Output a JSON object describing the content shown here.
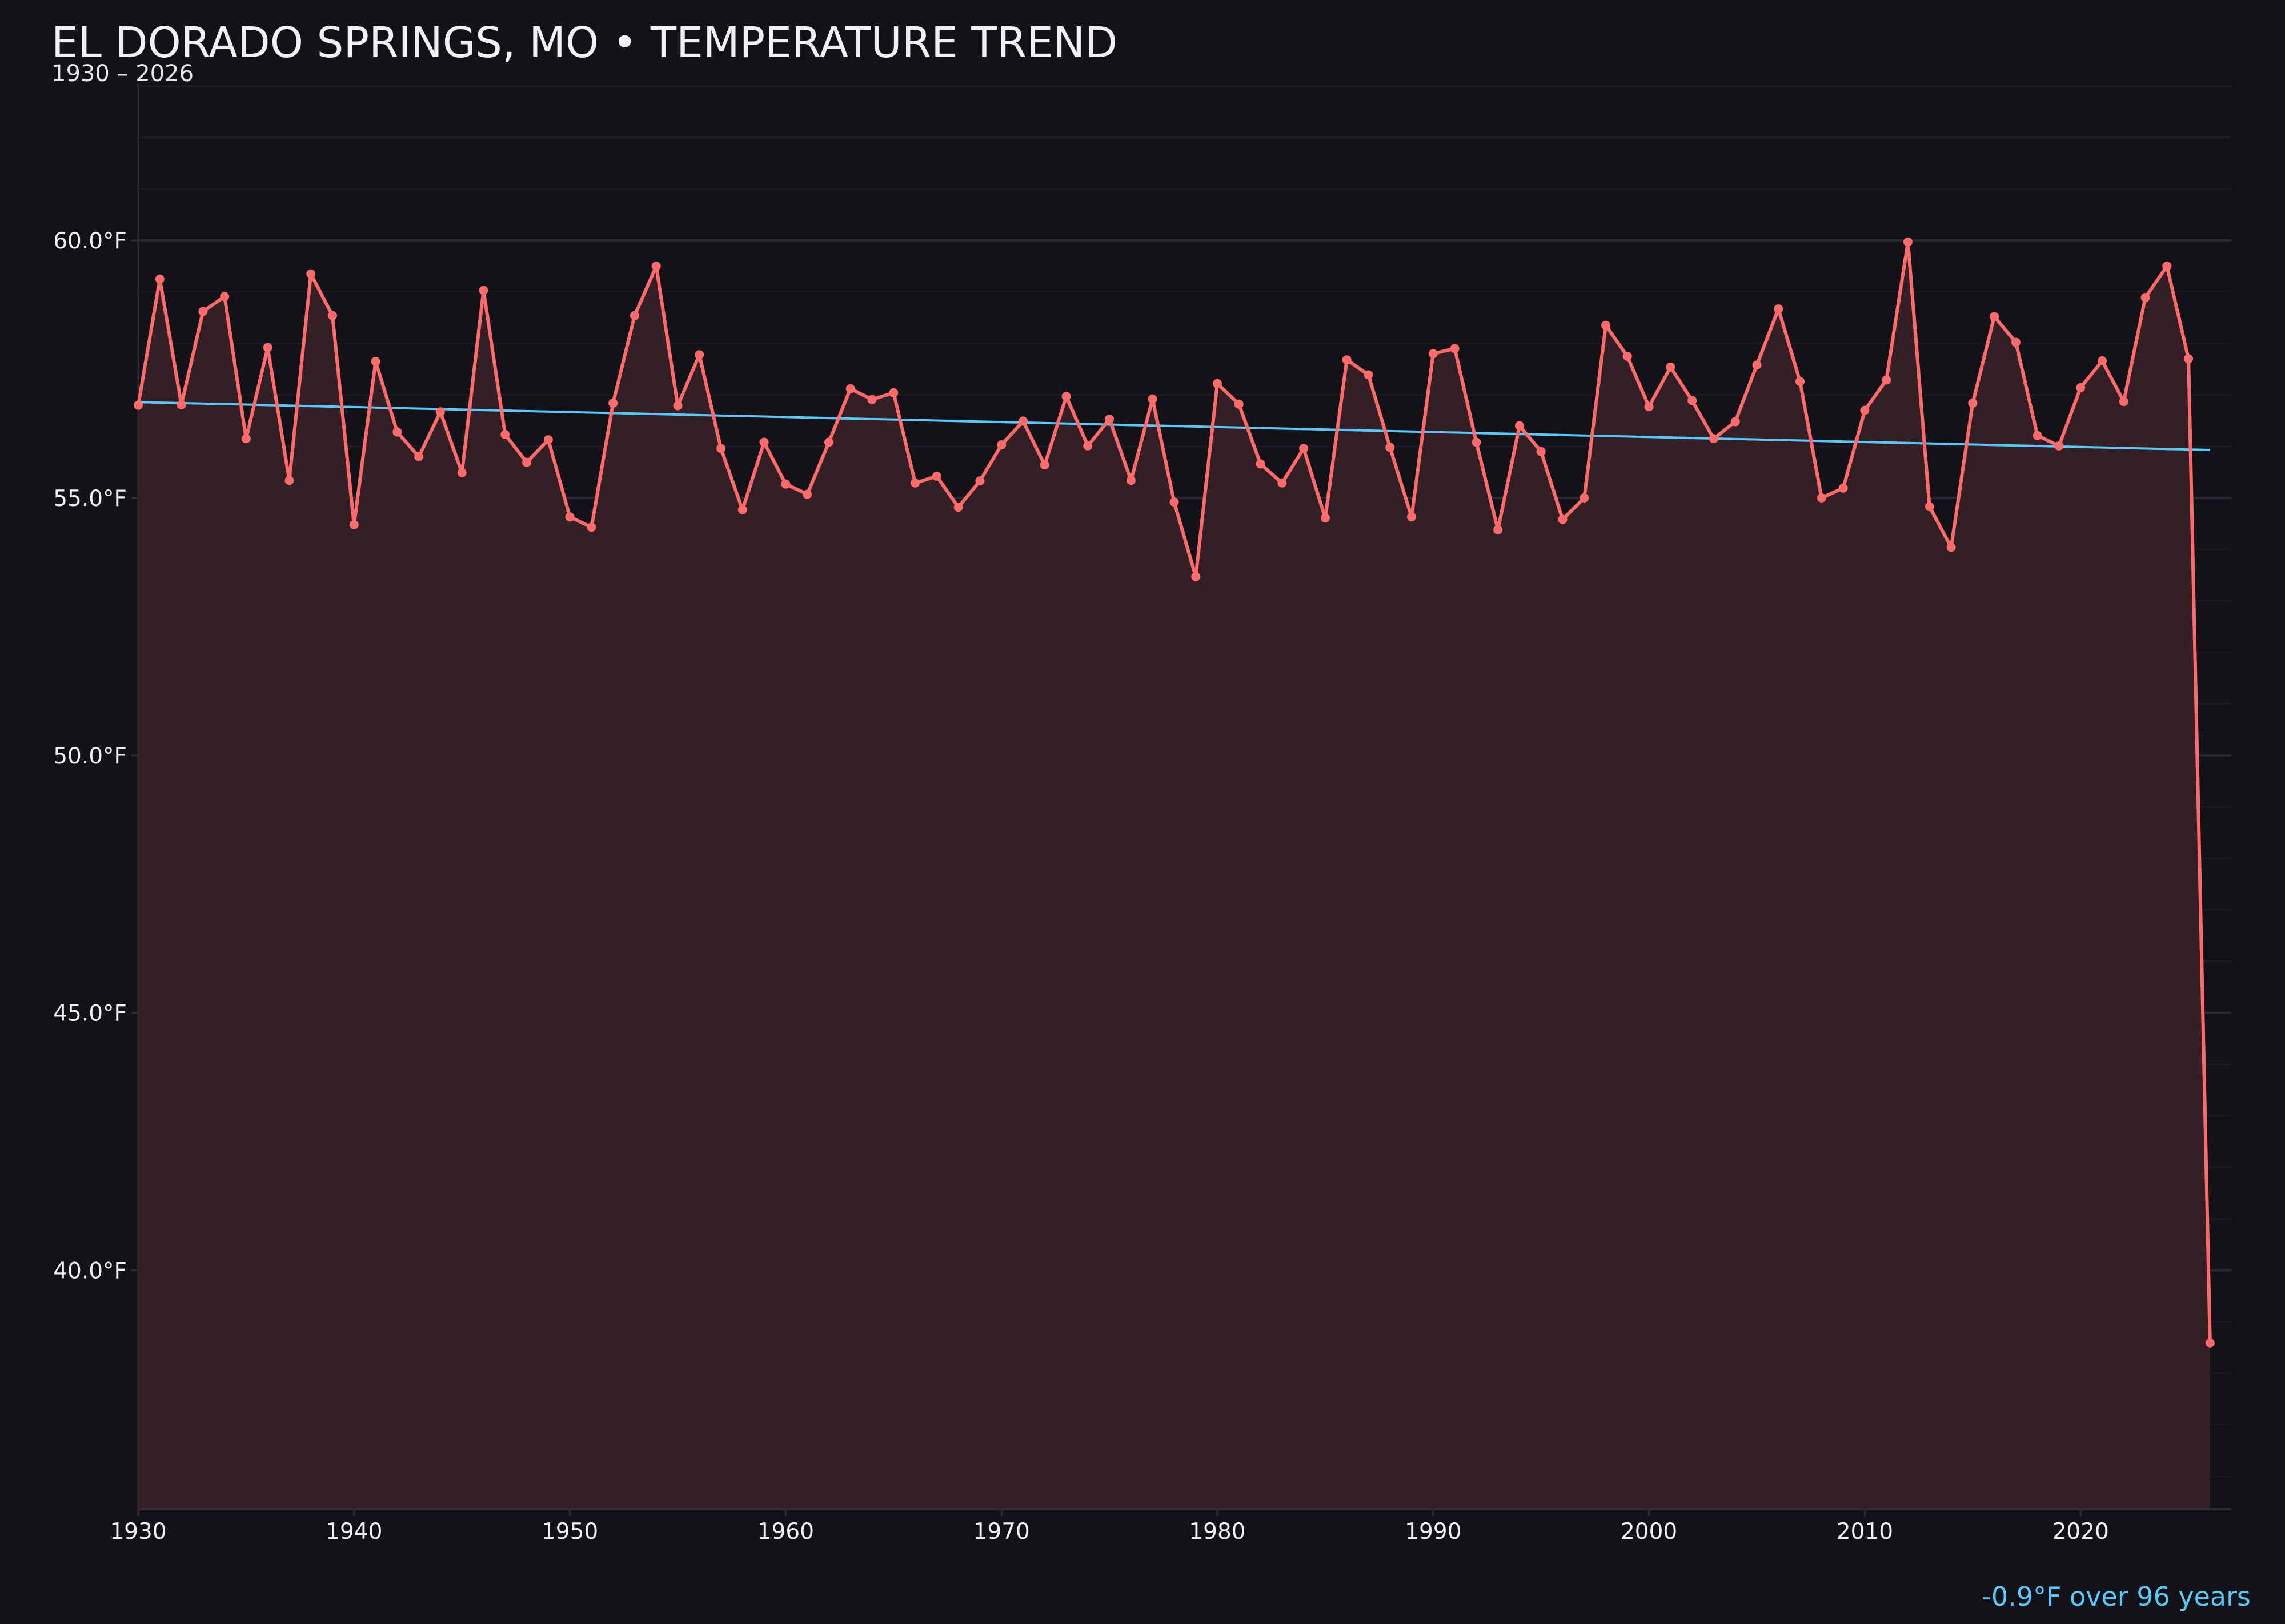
{
  "chart_data": {
    "type": "line",
    "title": "EL DORADO SPRINGS, MO • TEMPERATURE TREND",
    "subtitle": "1930 – 2026",
    "xlabel": "",
    "ylabel": "",
    "xlim": [
      1930,
      2027
    ],
    "ylim": [
      35.4,
      63
    ],
    "grid": true,
    "area_fill": true,
    "x_ticks": [
      1930,
      1940,
      1950,
      1960,
      1970,
      1980,
      1990,
      2000,
      2010,
      2020
    ],
    "x_tick_labels": [
      "1930",
      "1940",
      "1950",
      "1960",
      "1970",
      "1980",
      "1990",
      "2000",
      "2010",
      "2020"
    ],
    "y_ticks": [
      40,
      45,
      50,
      55,
      60
    ],
    "y_tick_labels": [
      "40.0°F",
      "45.0°F",
      "50.0°F",
      "55.0°F",
      "60.0°F"
    ],
    "x": [
      1930,
      1931,
      1932,
      1933,
      1934,
      1935,
      1936,
      1937,
      1938,
      1939,
      1940,
      1941,
      1942,
      1943,
      1944,
      1945,
      1946,
      1947,
      1948,
      1949,
      1950,
      1951,
      1952,
      1953,
      1954,
      1955,
      1956,
      1957,
      1958,
      1959,
      1960,
      1961,
      1962,
      1963,
      1964,
      1965,
      1966,
      1967,
      1968,
      1969,
      1970,
      1971,
      1972,
      1973,
      1974,
      1975,
      1976,
      1977,
      1978,
      1979,
      1980,
      1981,
      1982,
      1983,
      1984,
      1985,
      1986,
      1987,
      1988,
      1989,
      1990,
      1991,
      1992,
      1993,
      1994,
      1995,
      1996,
      1997,
      1998,
      1999,
      2000,
      2001,
      2002,
      2003,
      2004,
      2005,
      2006,
      2007,
      2008,
      2009,
      2010,
      2011,
      2012,
      2013,
      2014,
      2015,
      2016,
      2017,
      2018,
      2019,
      2020,
      2021,
      2022,
      2023,
      2024,
      2025,
      2026
    ],
    "series": [
      {
        "values": [
          56.8,
          59.25,
          56.81,
          58.62,
          58.91,
          56.15,
          57.92,
          55.34,
          59.35,
          58.54,
          54.48,
          57.65,
          56.28,
          55.8,
          56.67,
          55.49,
          59.03,
          56.23,
          55.69,
          56.13,
          54.63,
          54.43,
          56.84,
          58.54,
          59.5,
          56.79,
          57.78,
          55.96,
          54.77,
          56.08,
          55.27,
          55.07,
          56.08,
          57.12,
          56.91,
          57.04,
          55.29,
          55.42,
          54.82,
          55.33,
          56.03,
          56.49,
          55.64,
          56.97,
          56.01,
          56.53,
          55.34,
          56.92,
          54.92,
          53.47,
          57.22,
          56.82,
          55.66,
          55.29,
          55.96,
          54.61,
          57.68,
          57.39,
          55.98,
          54.63,
          57.8,
          57.9,
          56.08,
          54.38,
          56.4,
          55.9,
          54.58,
          55.0,
          58.35,
          57.75,
          56.77,
          57.54,
          56.89,
          56.15,
          56.48,
          57.58,
          58.67,
          57.26,
          55.0,
          55.19,
          56.7,
          57.29,
          59.97,
          54.83,
          54.04,
          56.84,
          58.52,
          58.02,
          56.21,
          56.01,
          57.14,
          57.66,
          56.87,
          58.89,
          59.5,
          57.7,
          38.59
        ],
        "color": "#ff6b6b"
      }
    ],
    "trend": {
      "x": [
        1930,
        2026
      ],
      "y": [
        56.86,
        55.93
      ],
      "color": "#5ac8fa"
    },
    "annotation": "-0.9°F over 96 years",
    "colors": {
      "background": "#131218",
      "area": "#351f26",
      "grid": "#24222a"
    }
  }
}
